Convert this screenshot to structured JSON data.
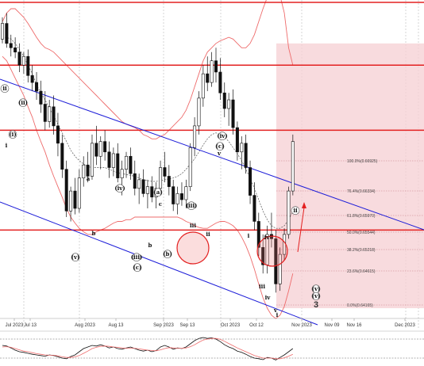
{
  "chart_data": {
    "type": "candlestick",
    "title": "",
    "x_tick_labels": [
      "Jul 2023",
      "Jul 13",
      "Aug 2023",
      "Aug 13",
      "Sep 2023",
      "Sep 13",
      "Oct 2023",
      "Oct 12",
      "Nov 2023",
      "Nov 09",
      "Nov 16",
      "Dec 2023"
    ],
    "fib_levels": [
      {
        "label": "100.0%(0.66925)",
        "value": 0.66925
      },
      {
        "label": "76.4%(0.66334)",
        "value": 0.66334
      },
      {
        "label": "61.8%(0.65970)",
        "value": 0.6597
      },
      {
        "label": "50.0%(0.65544)",
        "value": 0.65544
      },
      {
        "label": "38.2%(0.65218)",
        "value": 0.65218
      },
      {
        "label": "23.6%(0.64615)",
        "value": 0.64615
      },
      {
        "label": "0.0%(0.64165)",
        "value": 0.64165
      }
    ],
    "horizontal_levels": [
      0.668,
      0.6605,
      0.649
    ],
    "wave_labels": [
      "ii",
      "(ii)",
      "(i)",
      "i",
      "a",
      "(iv)",
      "b",
      "(a)",
      "c",
      "(iii)",
      "(v)",
      "b",
      "(b)",
      "(c)",
      "(iv)",
      "(c)",
      "v",
      "iii",
      "ii",
      "i",
      "iv",
      "iii",
      "iv",
      "i",
      "v",
      "(v)",
      "(iii)",
      "ii",
      "(v)",
      "3"
    ],
    "series": [
      {
        "name": "",
        "kind": "candles",
        "ohlc": [
          [
            0.671,
            0.6735,
            0.6705,
            0.6728
          ],
          [
            0.6728,
            0.674,
            0.67,
            0.6705
          ],
          [
            0.6705,
            0.6715,
            0.669,
            0.67
          ],
          [
            0.67,
            0.6712,
            0.6688,
            0.6695
          ],
          [
            0.6695,
            0.6705,
            0.6672,
            0.668
          ],
          [
            0.668,
            0.6695,
            0.667,
            0.669
          ],
          [
            0.669,
            0.6698,
            0.666,
            0.6668
          ],
          [
            0.6668,
            0.668,
            0.665,
            0.666
          ],
          [
            0.666,
            0.6672,
            0.664,
            0.665
          ],
          [
            0.665,
            0.6662,
            0.6625,
            0.6635
          ],
          [
            0.6635,
            0.665,
            0.6605,
            0.6615
          ],
          [
            0.6615,
            0.664,
            0.6608,
            0.6632
          ],
          [
            0.6632,
            0.6645,
            0.66,
            0.661
          ],
          [
            0.661,
            0.6625,
            0.6575,
            0.659
          ],
          [
            0.659,
            0.66,
            0.655,
            0.656
          ],
          [
            0.656,
            0.657,
            0.6505,
            0.6512
          ],
          [
            0.6512,
            0.654,
            0.65,
            0.6535
          ],
          [
            0.6535,
            0.655,
            0.6508,
            0.6515
          ],
          [
            0.6515,
            0.656,
            0.651,
            0.655
          ],
          [
            0.655,
            0.6575,
            0.654,
            0.6565
          ],
          [
            0.6565,
            0.658,
            0.6545,
            0.6552
          ],
          [
            0.6552,
            0.66,
            0.6548,
            0.659
          ],
          [
            0.659,
            0.661,
            0.6565,
            0.6575
          ],
          [
            0.6575,
            0.6598,
            0.656,
            0.6592
          ],
          [
            0.6592,
            0.6605,
            0.657,
            0.658
          ],
          [
            0.658,
            0.6592,
            0.655,
            0.6562
          ],
          [
            0.6562,
            0.6585,
            0.6552,
            0.6578
          ],
          [
            0.6578,
            0.659,
            0.6545,
            0.655
          ],
          [
            0.655,
            0.657,
            0.653,
            0.656
          ],
          [
            0.656,
            0.658,
            0.655,
            0.6575
          ],
          [
            0.6575,
            0.6585,
            0.6548,
            0.6555
          ],
          [
            0.6555,
            0.657,
            0.653,
            0.6538
          ],
          [
            0.6538,
            0.6555,
            0.652,
            0.6548
          ],
          [
            0.6548,
            0.656,
            0.6528,
            0.6532
          ],
          [
            0.6532,
            0.6548,
            0.6515,
            0.654
          ],
          [
            0.654,
            0.6552,
            0.6522,
            0.6528
          ],
          [
            0.6528,
            0.6545,
            0.6515,
            0.6538
          ],
          [
            0.6538,
            0.657,
            0.653,
            0.6562
          ],
          [
            0.6562,
            0.658,
            0.6545,
            0.6552
          ],
          [
            0.6552,
            0.6565,
            0.653,
            0.654
          ],
          [
            0.654,
            0.6548,
            0.6512,
            0.652
          ],
          [
            0.652,
            0.654,
            0.6508,
            0.6532
          ],
          [
            0.6532,
            0.6545,
            0.6518,
            0.6525
          ],
          [
            0.6525,
            0.6548,
            0.6515,
            0.654
          ],
          [
            0.654,
            0.659,
            0.6535,
            0.6585
          ],
          [
            0.6585,
            0.662,
            0.6575,
            0.661
          ],
          [
            0.661,
            0.665,
            0.66,
            0.6642
          ],
          [
            0.6642,
            0.668,
            0.6632,
            0.667
          ],
          [
            0.667,
            0.669,
            0.665,
            0.666
          ],
          [
            0.666,
            0.6695,
            0.6655,
            0.6685
          ],
          [
            0.6685,
            0.67,
            0.666,
            0.6672
          ],
          [
            0.6672,
            0.6688,
            0.664,
            0.6648
          ],
          [
            0.6648,
            0.666,
            0.662,
            0.663
          ],
          [
            0.663,
            0.6648,
            0.661,
            0.664
          ],
          [
            0.664,
            0.6652,
            0.66,
            0.6608
          ],
          [
            0.6608,
            0.6615,
            0.657,
            0.658
          ],
          [
            0.658,
            0.6598,
            0.656,
            0.659
          ],
          [
            0.659,
            0.66,
            0.6555,
            0.6562
          ],
          [
            0.6562,
            0.657,
            0.652,
            0.653
          ],
          [
            0.653,
            0.6545,
            0.649,
            0.65
          ],
          [
            0.65,
            0.651,
            0.646,
            0.647
          ],
          [
            0.647,
            0.6485,
            0.644,
            0.645
          ],
          [
            0.645,
            0.6495,
            0.644,
            0.6485
          ],
          [
            0.6485,
            0.651,
            0.647,
            0.648
          ],
          [
            0.648,
            0.649,
            0.6418,
            0.6428
          ],
          [
            0.6428,
            0.647,
            0.642,
            0.6462
          ],
          [
            0.6462,
            0.6492,
            0.6455,
            0.6485
          ],
          [
            0.6485,
            0.654,
            0.648,
            0.6535
          ],
          [
            0.6535,
            0.66,
            0.653,
            0.6592
          ]
        ]
      },
      {
        "name": "",
        "kind": "bollinger_upper",
        "values": [
          0.673,
          0.674,
          0.6745,
          0.6745,
          0.674,
          0.6735,
          0.6728,
          0.672,
          0.6712,
          0.6705,
          0.67,
          0.6698,
          0.6695,
          0.669,
          0.6685,
          0.668,
          0.6675,
          0.667,
          0.6665,
          0.666,
          0.6655,
          0.665,
          0.6645,
          0.664,
          0.6635,
          0.663,
          0.6625,
          0.662,
          0.6615,
          0.6612,
          0.661,
          0.6608,
          0.6605,
          0.66,
          0.6598,
          0.6595,
          0.6595,
          0.6598,
          0.66,
          0.6605,
          0.661,
          0.6615,
          0.662,
          0.6628,
          0.664,
          0.6655,
          0.667,
          0.6685,
          0.6695,
          0.67,
          0.6705,
          0.6708,
          0.671,
          0.6712,
          0.671,
          0.6705,
          0.67,
          0.67,
          0.6705,
          0.6715,
          0.673,
          0.6745,
          0.6758,
          0.6765,
          0.6768,
          0.676,
          0.674,
          0.67,
          0.668
        ]
      },
      {
        "name": "",
        "kind": "bollinger_lower",
        "values": [
          0.669,
          0.6685,
          0.6675,
          0.6665,
          0.6655,
          0.6645,
          0.6632,
          0.662,
          0.6605,
          0.6592,
          0.658,
          0.6565,
          0.6552,
          0.654,
          0.6528,
          0.6515,
          0.6505,
          0.6498,
          0.6492,
          0.6488,
          0.6485,
          0.6485,
          0.6488,
          0.649,
          0.6492,
          0.6495,
          0.6498,
          0.65,
          0.65,
          0.6502,
          0.6502,
          0.6505,
          0.6505,
          0.6505,
          0.6505,
          0.6505,
          0.6505,
          0.6505,
          0.6505,
          0.6505,
          0.6505,
          0.6505,
          0.6503,
          0.65,
          0.6498,
          0.6495,
          0.6493,
          0.6492,
          0.6492,
          0.6495,
          0.6498,
          0.65,
          0.65,
          0.6498,
          0.6495,
          0.649,
          0.6482,
          0.6472,
          0.646,
          0.6445,
          0.6428,
          0.6412,
          0.64,
          0.6392,
          0.6388,
          0.6392,
          0.6402,
          0.642,
          0.644
        ]
      },
      {
        "name": "",
        "kind": "moving_average",
        "values": [
          0.671,
          0.6712,
          0.671,
          0.6705,
          0.6698,
          0.669,
          0.668,
          0.667,
          0.6658,
          0.6648,
          0.664,
          0.663,
          0.6622,
          0.6612,
          0.6602,
          0.6592,
          0.6582,
          0.6575,
          0.657,
          0.6566,
          0.6563,
          0.6562,
          0.6562,
          0.6562,
          0.6562,
          0.656,
          0.6558,
          0.6556,
          0.6555,
          0.6554,
          0.6553,
          0.6552,
          0.655,
          0.6548,
          0.6547,
          0.6546,
          0.6546,
          0.6547,
          0.6548,
          0.6549,
          0.655,
          0.6552,
          0.6555,
          0.656,
          0.6566,
          0.6572,
          0.658,
          0.6588,
          0.6595,
          0.66,
          0.6602,
          0.66,
          0.6597,
          0.6592,
          0.6585,
          0.6578,
          0.657,
          0.656,
          0.655,
          0.6538,
          0.6525,
          0.6512,
          0.6502,
          0.6495,
          0.6492,
          0.6492,
          0.6495,
          0.6502,
          0.6512
        ]
      },
      {
        "name": "",
        "kind": "oscillator_1",
        "values": [
          60,
          58,
          52,
          45,
          40,
          38,
          35,
          32,
          30,
          28,
          26,
          30,
          28,
          24,
          20,
          18,
          25,
          30,
          40,
          50,
          55,
          60,
          58,
          62,
          58,
          52,
          55,
          50,
          48,
          52,
          55,
          50,
          45,
          42,
          45,
          40,
          44,
          55,
          60,
          55,
          48,
          52,
          50,
          55,
          65,
          75,
          82,
          85,
          82,
          84,
          80,
          72,
          62,
          55,
          50,
          42,
          38,
          32,
          25,
          20,
          18,
          15,
          22,
          20,
          14,
          22,
          30,
          40,
          50
        ]
      },
      {
        "name": "",
        "kind": "oscillator_2",
        "values": [
          55,
          56,
          54,
          50,
          46,
          42,
          40,
          37,
          34,
          32,
          30,
          29,
          29,
          27,
          24,
          22,
          22,
          24,
          28,
          35,
          42,
          50,
          54,
          57,
          58,
          57,
          55,
          54,
          52,
          51,
          51,
          51,
          49,
          47,
          45,
          44,
          43,
          46,
          50,
          53,
          52,
          51,
          51,
          52,
          56,
          62,
          70,
          77,
          80,
          82,
          82,
          79,
          73,
          66,
          59,
          52,
          46,
          40,
          34,
          28,
          24,
          20,
          20,
          20,
          18,
          18,
          21,
          26,
          32
        ]
      }
    ]
  },
  "colors": {
    "channel": "#1c1cd8",
    "level": "#e32020",
    "bands": "#ee6b6b",
    "ma": "#555555",
    "fib_zone": "#f6cfd3",
    "candle_up": "#ffffff",
    "candle_down": "#111111"
  }
}
